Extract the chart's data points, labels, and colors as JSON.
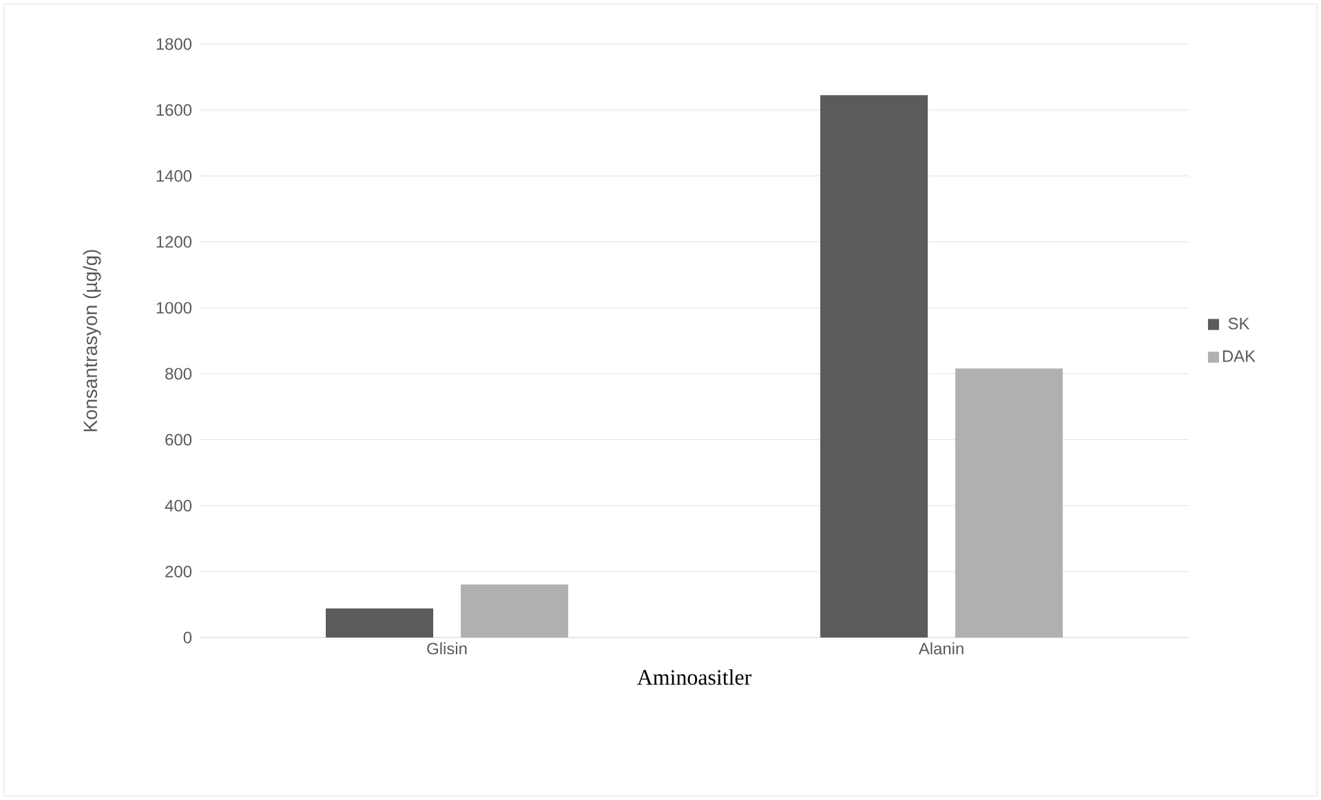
{
  "chart_data": {
    "type": "bar",
    "xlabel": "Aminoasitler",
    "ylabel": "Konsantrasyon (µg/g)",
    "categories": [
      "Glisin",
      "Alanin"
    ],
    "series": [
      {
        "name": "SK",
        "color": "#5b5b5b",
        "values": [
          88,
          1645
        ]
      },
      {
        "name": "DAK",
        "color": "#b0b0b0",
        "values": [
          161,
          816
        ]
      }
    ],
    "ylim": [
      0,
      1800
    ],
    "yticks": [
      0,
      200,
      400,
      600,
      800,
      1000,
      1200,
      1400,
      1600,
      1800
    ],
    "grid": "y",
    "legend": "right"
  }
}
